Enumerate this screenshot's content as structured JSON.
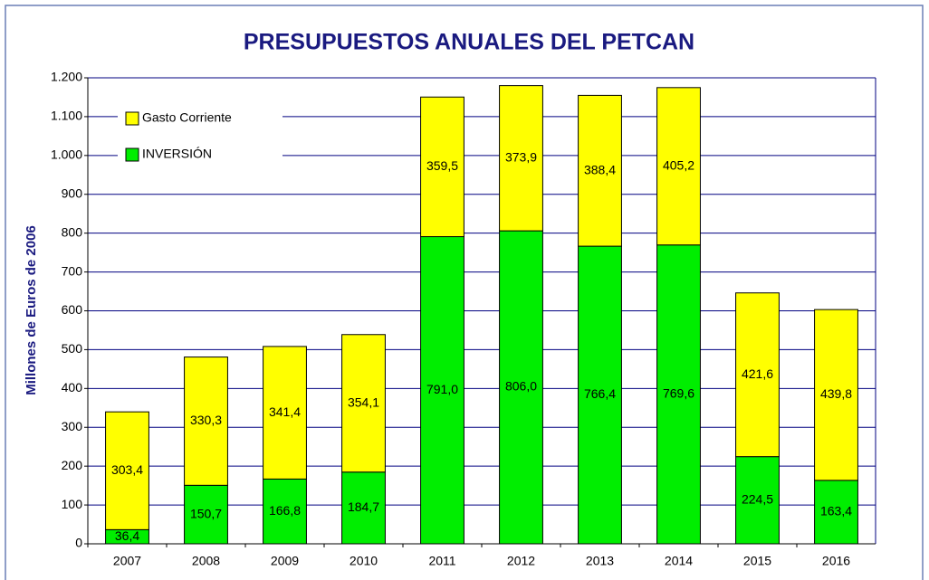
{
  "chart_data": {
    "type": "stacked_bar",
    "title": "PRESUPUESTOS ANUALES DEL PETCAN",
    "y_axis_label": "Millones de Euros de 2006",
    "categories": [
      "2007",
      "2008",
      "2009",
      "2010",
      "2011",
      "2012",
      "2013",
      "2014",
      "2015",
      "2016"
    ],
    "series": [
      {
        "name": "INVERSIÓN",
        "color": "#00ee00",
        "values": [
          36.4,
          150.7,
          166.8,
          184.7,
          791.0,
          806.0,
          766.4,
          769.6,
          224.5,
          163.4
        ],
        "value_labels": [
          "36,4",
          "150,7",
          "166,8",
          "184,7",
          "791,0",
          "806,0",
          "766,4",
          "769,6",
          "224,5",
          "163,4"
        ]
      },
      {
        "name": "Gasto Corriente",
        "color": "#ffff00",
        "values": [
          303.4,
          330.3,
          341.4,
          354.1,
          359.5,
          373.9,
          388.4,
          405.2,
          421.6,
          439.8
        ],
        "value_labels": [
          "303,4",
          "330,3",
          "341,4",
          "354,1",
          "359,5",
          "373,9",
          "388,4",
          "405,2",
          "421,6",
          "439,8"
        ]
      }
    ],
    "ylim": [
      0,
      1200
    ],
    "yticks": [
      0,
      100,
      200,
      300,
      400,
      500,
      600,
      700,
      800,
      900,
      {
        "value": 1000,
        "label": "1.000"
      },
      {
        "value": 1100,
        "label": "1.100"
      },
      {
        "value": 1200,
        "label": "1.200"
      }
    ],
    "grid": true,
    "legend": "upper left"
  }
}
